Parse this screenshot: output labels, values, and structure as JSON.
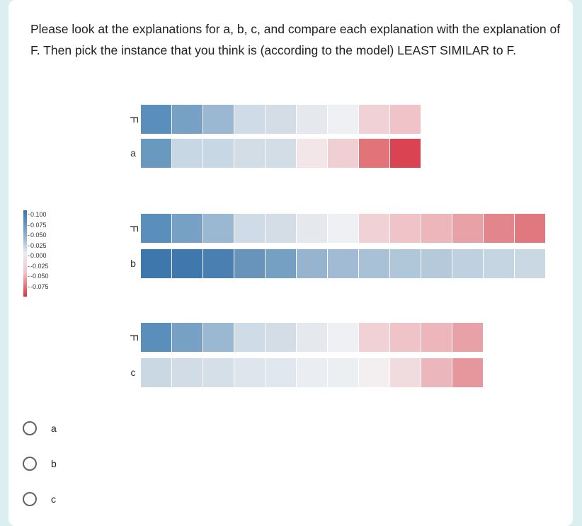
{
  "question": "Please look at the explanations for a, b, c, and compare each explanation with the explanation of F. Then pick the instance that you think is (according to the model) LEAST SIMILAR to F.",
  "colorbar": {
    "ticks": [
      "0.100",
      "0.075",
      "0.050",
      "0.025",
      "0.000",
      "-0.025",
      "-0.050",
      "-0.075"
    ]
  },
  "heatmaps": [
    {
      "rows": [
        {
          "label": "F",
          "colors": [
            "#5b8fbb",
            "#77a1c4",
            "#9ab8d2",
            "#cfdbe6",
            "#d4dde6",
            "#e5e9ee",
            "#eef0f3",
            "#f0d2d6",
            "#efc3c7"
          ]
        },
        {
          "label": "a",
          "colors": [
            "#6a99c0",
            "#c7d7e3",
            "#c7d7e3",
            "#d3dde6",
            "#d3dde6",
            "#f2e6e8",
            "#f0cfd3",
            "#e27479",
            "#da4352"
          ]
        }
      ]
    },
    {
      "rows": [
        {
          "label": "F",
          "colors": [
            "#5b8fbb",
            "#77a1c4",
            "#9ab8d2",
            "#cfdbe6",
            "#d4dde6",
            "#e5e9ee",
            "#eef0f3",
            "#f0d2d6",
            "#efc3c7",
            "#ecb6bb",
            "#e8a1a7",
            "#e3858c",
            "#e0787f"
          ]
        },
        {
          "label": "b",
          "colors": [
            "#3e77ab",
            "#3f78ac",
            "#4a80b1",
            "#6893bb",
            "#75a0c3",
            "#97b4cf",
            "#a0bbd3",
            "#a9c1d7",
            "#b0c6d9",
            "#b5c9db",
            "#bfd1e0",
            "#c5d5e2",
            "#c9d8e3"
          ]
        }
      ]
    },
    {
      "rows": [
        {
          "label": "F",
          "colors": [
            "#5b8fbb",
            "#77a1c4",
            "#9ab8d2",
            "#cfdbe6",
            "#d4dde6",
            "#e5e9ee",
            "#eef0f3",
            "#f0d2d6",
            "#efc3c7",
            "#ecb6bb",
            "#e8a1a7"
          ]
        },
        {
          "label": "c",
          "colors": [
            "#c9d8e3",
            "#d1dce6",
            "#d5dfe8",
            "#dfe5ec",
            "#e1e7ee",
            "#eaedf1",
            "#eceff2",
            "#f3eeef",
            "#f0dcdf",
            "#ebb7bc",
            "#e6979e"
          ]
        }
      ]
    }
  ],
  "options": [
    {
      "label": "a"
    },
    {
      "label": "b"
    },
    {
      "label": "c"
    }
  ]
}
